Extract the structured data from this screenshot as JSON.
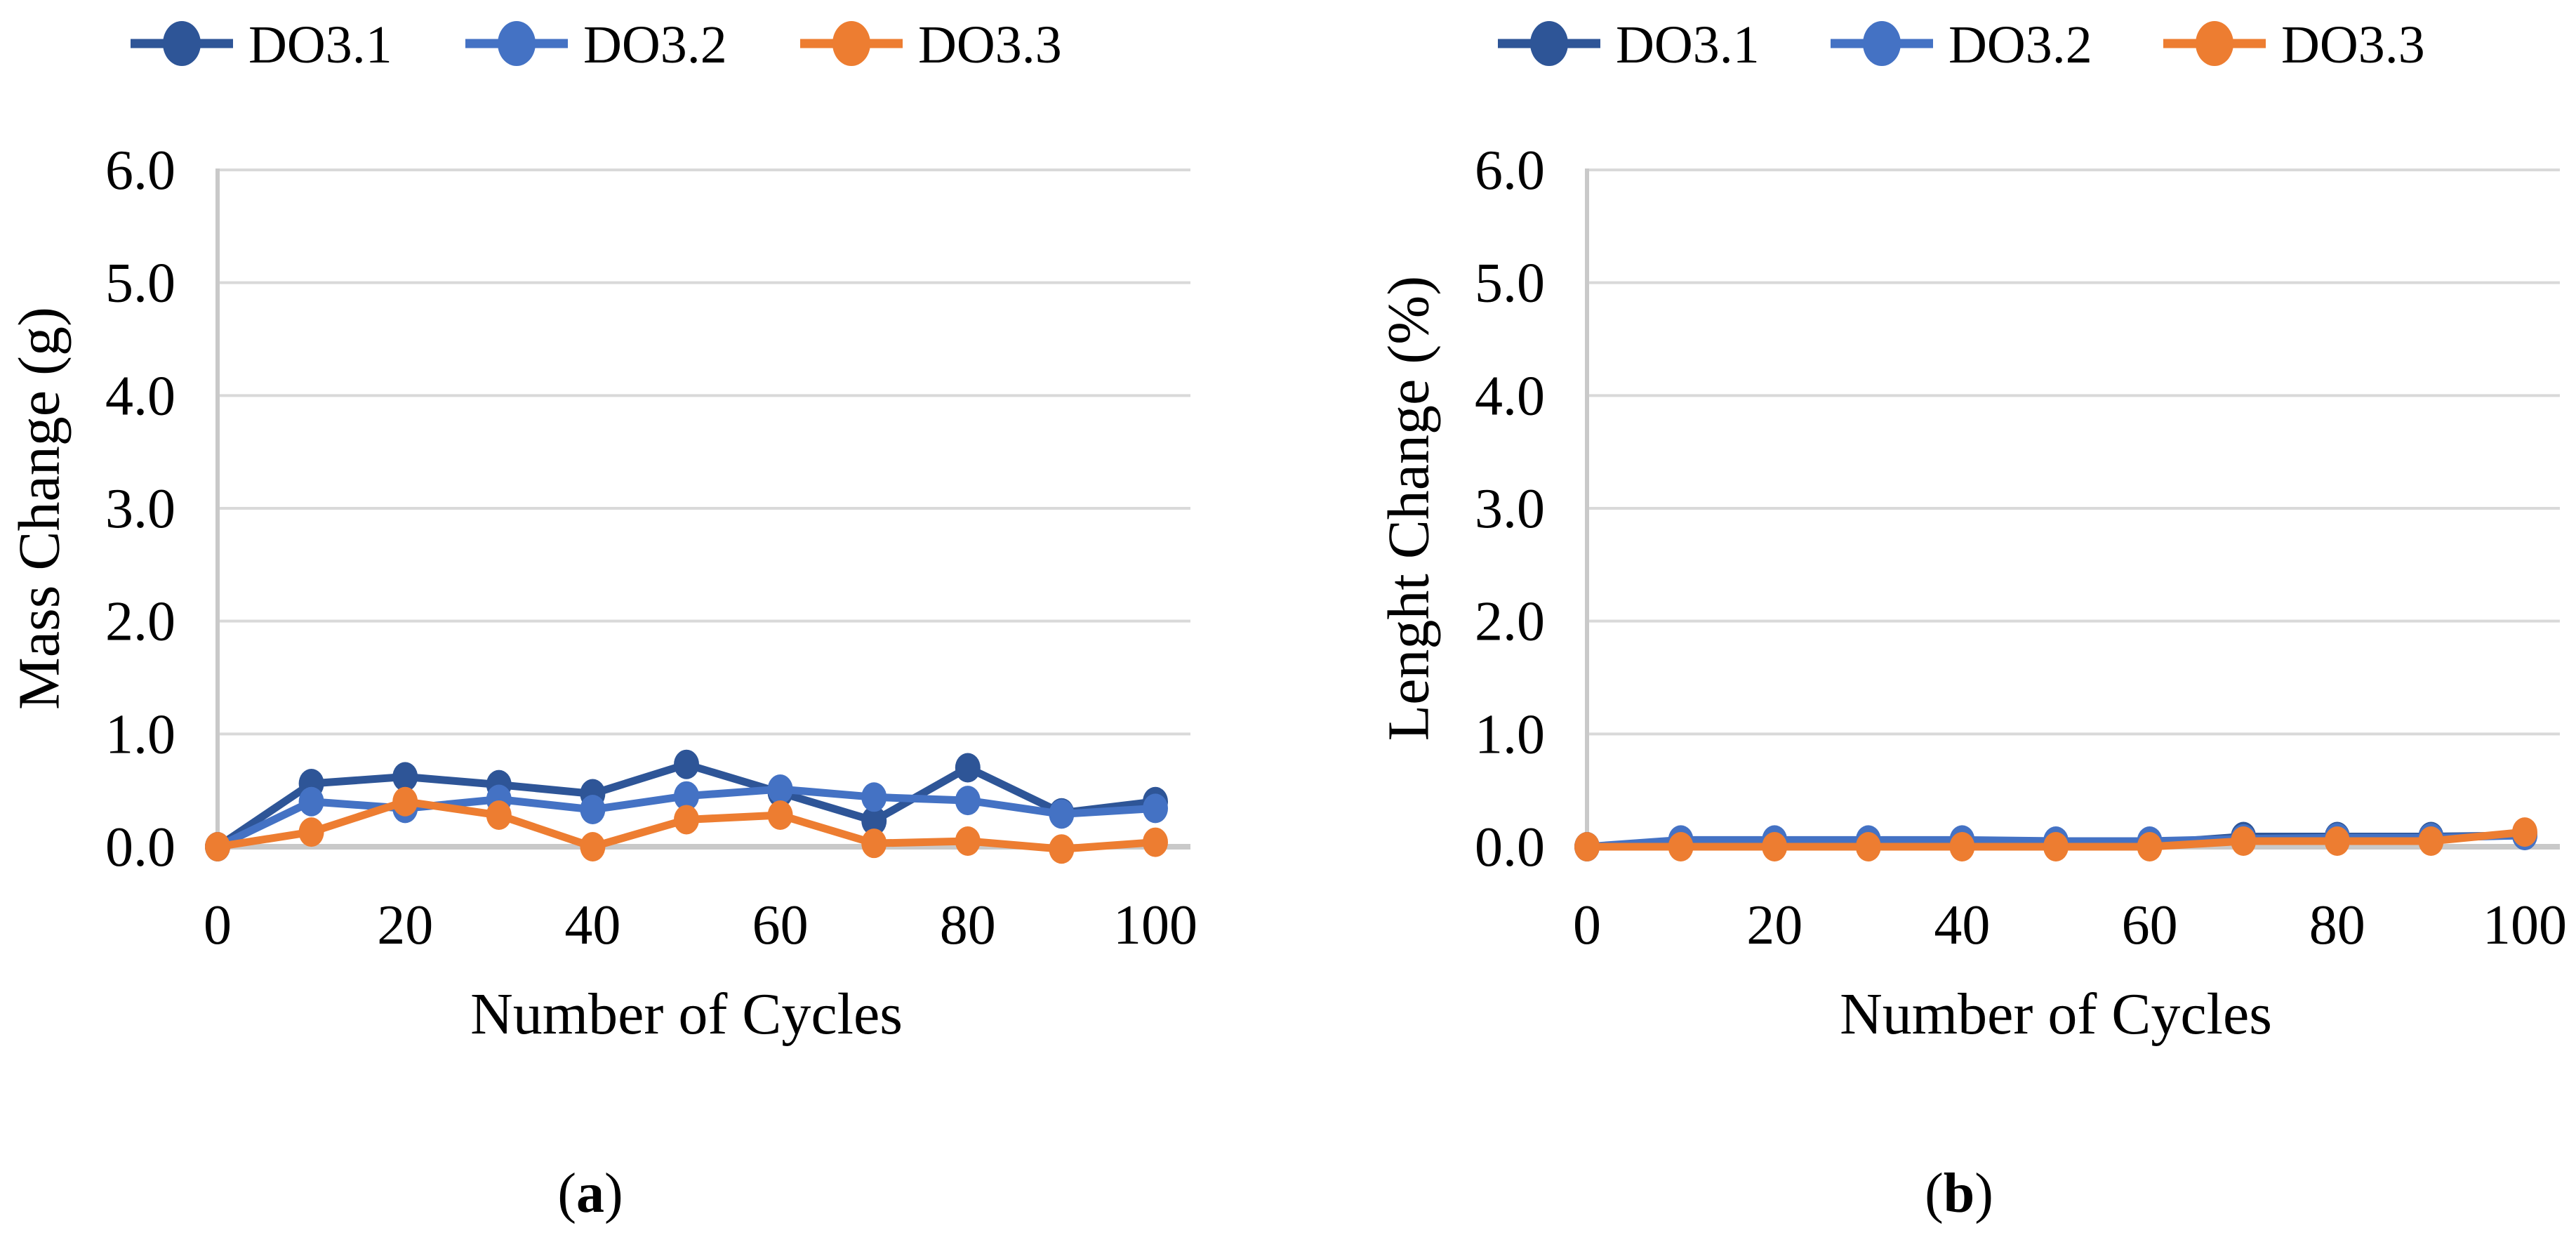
{
  "colors": {
    "gridline": "#D9D9D9",
    "axis_line": "#C9C9C9",
    "text": "#000000",
    "background": "#FFFFFF",
    "series_do31": "#2E5597",
    "series_do32": "#4472C4",
    "series_do33": "#ED7D31"
  },
  "chart_data": [
    {
      "type": "line",
      "panel": "a",
      "caption": {
        "open": "(",
        "letter": "a",
        "close": ")"
      },
      "xlabel": "Number of Cycles",
      "ylabel": "Mass Change (g)",
      "xlim": [
        0,
        100
      ],
      "ylim": [
        0,
        6
      ],
      "grid": "horizontal",
      "legend_position": "top",
      "x_ticks": [
        "0",
        "20",
        "40",
        "60",
        "80",
        "100"
      ],
      "x_tick_values": [
        0,
        20,
        40,
        60,
        80,
        100
      ],
      "y_ticks": [
        "6.0",
        "5.0",
        "4.0",
        "3.0",
        "2.0",
        "1.0",
        "0.0"
      ],
      "y_tick_values": [
        6,
        5,
        4,
        3,
        2,
        1,
        0
      ],
      "x": [
        0,
        10,
        20,
        30,
        40,
        50,
        60,
        70,
        80,
        90,
        100
      ],
      "series": [
        {
          "name": "DO3.1",
          "color": "#2E5597",
          "values": [
            0.0,
            0.56,
            0.62,
            0.55,
            0.47,
            0.73,
            0.48,
            0.23,
            0.7,
            0.3,
            0.4
          ]
        },
        {
          "name": "DO3.2",
          "color": "#4472C4",
          "values": [
            0.0,
            0.4,
            0.34,
            0.42,
            0.33,
            0.45,
            0.51,
            0.44,
            0.41,
            0.29,
            0.34
          ]
        },
        {
          "name": "DO3.3",
          "color": "#ED7D31",
          "values": [
            0.0,
            0.13,
            0.4,
            0.28,
            0.0,
            0.24,
            0.28,
            0.03,
            0.05,
            -0.02,
            0.04
          ]
        }
      ]
    },
    {
      "type": "line",
      "panel": "b",
      "caption": {
        "open": "(",
        "letter": "b",
        "close": ")"
      },
      "xlabel": "Number of Cycles",
      "ylabel": "Lenght Change (%)",
      "xlim": [
        0,
        100
      ],
      "ylim": [
        0,
        6
      ],
      "grid": "horizontal",
      "legend_position": "top",
      "x_ticks": [
        "0",
        "20",
        "40",
        "60",
        "80",
        "100"
      ],
      "x_tick_values": [
        0,
        20,
        40,
        60,
        80,
        100
      ],
      "y_ticks": [
        "6.0",
        "5.0",
        "4.0",
        "3.0",
        "2.0",
        "1.0",
        "0.0"
      ],
      "y_tick_values": [
        6,
        5,
        4,
        3,
        2,
        1,
        0
      ],
      "x": [
        0,
        10,
        20,
        30,
        40,
        50,
        60,
        70,
        80,
        90,
        100
      ],
      "series": [
        {
          "name": "DO3.1",
          "color": "#2E5597",
          "values": [
            0.0,
            0.03,
            0.03,
            0.03,
            0.03,
            0.03,
            0.03,
            0.09,
            0.09,
            0.09,
            0.1
          ]
        },
        {
          "name": "DO3.2",
          "color": "#4472C4",
          "values": [
            0.0,
            0.06,
            0.06,
            0.06,
            0.06,
            0.05,
            0.05,
            0.07,
            0.08,
            0.08,
            0.1
          ]
        },
        {
          "name": "DO3.3",
          "color": "#ED7D31",
          "values": [
            0.0,
            0.0,
            0.0,
            0.0,
            0.0,
            0.0,
            0.0,
            0.05,
            0.05,
            0.05,
            0.13
          ]
        }
      ]
    }
  ]
}
